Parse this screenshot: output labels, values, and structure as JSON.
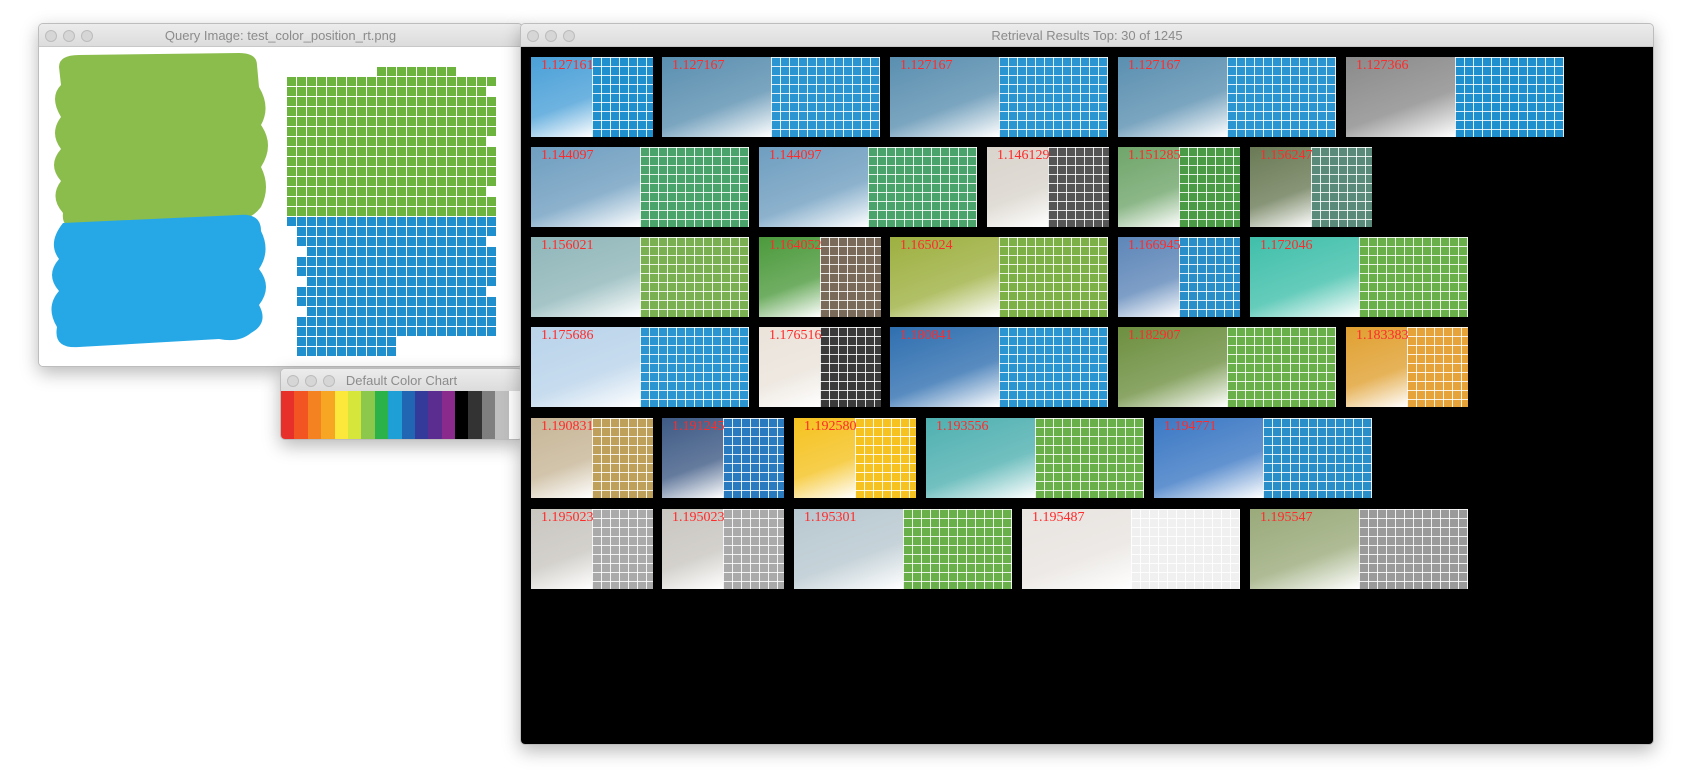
{
  "query_window": {
    "title": "Query Image: test_color_position_rt.png",
    "query_colors": {
      "top": "#8bbd4c",
      "bottom": "#27a8e6"
    },
    "quantized_colors": {
      "top": "#6db43f",
      "bottom": "#1f8fcd"
    }
  },
  "color_chart_window": {
    "title": "Default Color Chart",
    "swatches": [
      "#e8302a",
      "#f25522",
      "#f58220",
      "#f6a623",
      "#fbe83b",
      "#d7e63a",
      "#8cc84b",
      "#2bb34a",
      "#1e9fd5",
      "#2166b2",
      "#343a9a",
      "#5b2d90",
      "#8a2a8c",
      "#000000",
      "#333333",
      "#7f7f7f",
      "#bfbfbf",
      "#ffffff"
    ]
  },
  "results_window": {
    "title": "Retrieval Results Top: 30 of 1245",
    "rows": [
      [
        {
          "score": "1.127161",
          "photo": "#4aa0d8",
          "grid": "#1f8fcd"
        },
        {
          "score": "1.127167",
          "photo": "#5a8fb0",
          "grid": "#2a95d0"
        },
        {
          "score": "1.127167",
          "photo": "#5a8fb0",
          "grid": "#2a95d0"
        },
        {
          "score": "1.127167",
          "photo": "#5a8fb0",
          "grid": "#2a95d0"
        },
        {
          "score": "1.127366",
          "photo": "#8a8a8a",
          "grid": "#1f8fcd"
        }
      ],
      [
        {
          "score": "1.144097",
          "photo": "#6f9ec0",
          "grid": "#4aa36b"
        },
        {
          "score": "1.144097",
          "photo": "#6f9ec0",
          "grid": "#4aa36b"
        },
        {
          "score": "1.146129",
          "photo": "#d9d4cc",
          "grid": "#555555"
        },
        {
          "score": "1.151285",
          "photo": "#6fa56a",
          "grid": "#4b9a45"
        },
        {
          "score": "1.156247",
          "photo": "#6a7a55",
          "grid": "#5a8a7a"
        }
      ],
      [
        {
          "score": "1.156021",
          "photo": "#8fb6b9",
          "grid": "#7ab052"
        },
        {
          "score": "1.164052",
          "photo": "#4c9a3c",
          "grid": "#7a6a5a"
        },
        {
          "score": "1.165024",
          "photo": "#9db040",
          "grid": "#7db046"
        },
        {
          "score": "1.166945",
          "photo": "#5d86b8",
          "grid": "#2a8ec8"
        },
        {
          "score": "1.172046",
          "photo": "#3fbfaa",
          "grid": "#6ab04a"
        }
      ],
      [
        {
          "score": "1.175686",
          "photo": "#b9d3ea",
          "grid": "#2a95d0"
        },
        {
          "score": "1.176516",
          "photo": "#eae3da",
          "grid": "#3a3a3a"
        },
        {
          "score": "1.180841",
          "photo": "#2f6fb0",
          "grid": "#2a95d0"
        },
        {
          "score": "1.182907",
          "photo": "#6d8f3f",
          "grid": "#6ab04a"
        },
        {
          "score": "1.183383",
          "photo": "#e0a030",
          "grid": "#e6a33a"
        }
      ],
      [
        {
          "score": "1.190831",
          "photo": "#c7b697",
          "grid": "#bfa05a"
        },
        {
          "score": "1.191245",
          "photo": "#3e5a85",
          "grid": "#2a7ac0"
        },
        {
          "score": "1.192580",
          "photo": "#f5c21f",
          "grid": "#f5c21f"
        },
        {
          "score": "1.193556",
          "photo": "#4fb0b0",
          "grid": "#6ab04a"
        },
        {
          "score": "1.194771",
          "photo": "#3b78c4",
          "grid": "#2a8ec8"
        }
      ],
      [
        {
          "score": "1.195023",
          "photo": "#c9c6c0",
          "grid": "#aaaaaa"
        },
        {
          "score": "1.195023",
          "photo": "#c9c6c0",
          "grid": "#aaaaaa"
        },
        {
          "score": "1.195301",
          "photo": "#b8c8d0",
          "grid": "#6ab04a"
        },
        {
          "score": "1.195487",
          "photo": "#e8e4e0",
          "grid": "#f0f0f0"
        },
        {
          "score": "1.195547",
          "photo": "#9aaa7a",
          "grid": "#9a9a9a"
        }
      ]
    ]
  }
}
